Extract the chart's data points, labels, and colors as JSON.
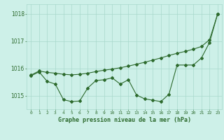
{
  "hours": [
    0,
    1,
    2,
    3,
    4,
    5,
    6,
    7,
    8,
    9,
    10,
    11,
    12,
    13,
    14,
    15,
    16,
    17,
    18,
    19,
    20,
    21,
    22,
    23
  ],
  "line1": [
    1015.75,
    1015.9,
    1015.85,
    1015.82,
    1015.78,
    1015.76,
    1015.78,
    1015.82,
    1015.88,
    1015.93,
    1015.97,
    1016.02,
    1016.08,
    1016.15,
    1016.22,
    1016.3,
    1016.38,
    1016.47,
    1016.55,
    1016.62,
    1016.7,
    1016.8,
    1017.05,
    1018.0
  ],
  "line2": [
    1015.72,
    1015.87,
    1015.52,
    1015.42,
    1014.85,
    1014.78,
    1014.8,
    1015.28,
    1015.55,
    1015.58,
    1015.65,
    1015.42,
    1015.58,
    1015.02,
    1014.88,
    1014.83,
    1014.78,
    1015.05,
    1016.12,
    1016.12,
    1016.12,
    1016.38,
    1016.95,
    1018.0
  ],
  "line_color": "#2d6a2d",
  "bg_color": "#cdf0e8",
  "grid_color": "#a8d8cc",
  "xlabel": "Graphe pression niveau de la mer (hPa)",
  "ylim": [
    1014.5,
    1018.35
  ],
  "yticks": [
    1015,
    1016,
    1017,
    1018
  ],
  "marker": "D",
  "marker_size": 2.0,
  "linewidth": 0.8
}
